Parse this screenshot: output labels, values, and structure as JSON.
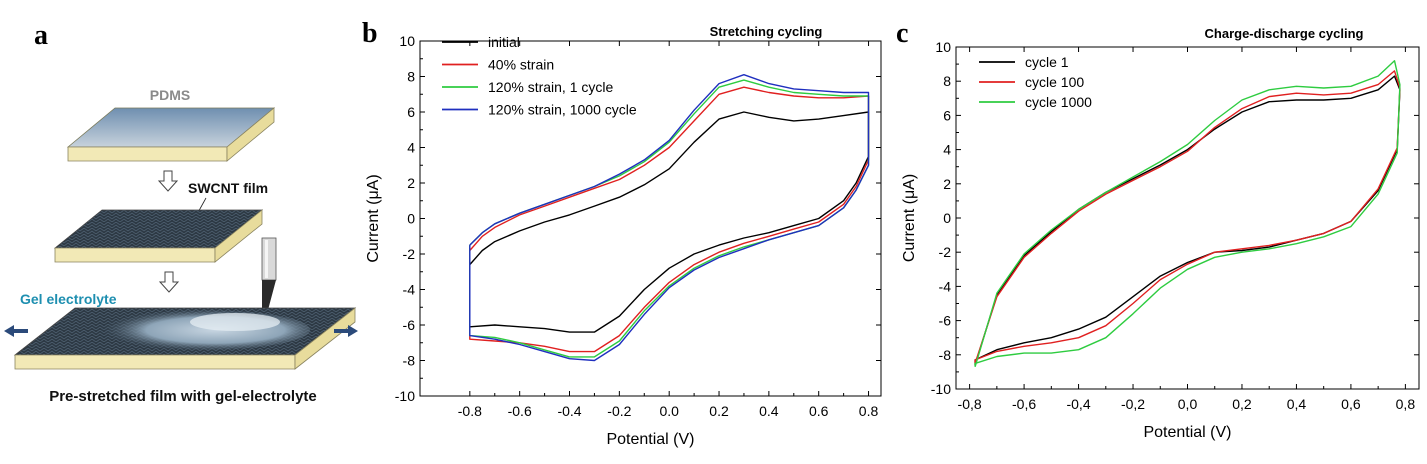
{
  "panels": {
    "a": {
      "letter": "a",
      "pdms_label": "PDMS",
      "swcnt_label": "SWCNT film",
      "gel_label": "Gel electrolyte",
      "caption": "Pre-stretched film with gel-electrolyte"
    },
    "b": {
      "letter": "b"
    },
    "c": {
      "letter": "c"
    }
  },
  "chart_data": [
    {
      "type": "line",
      "title": "Stretching cycling",
      "xlabel": "Potential (V)",
      "ylabel": "Current (μA)",
      "xlim": [
        -1.0,
        0.85
      ],
      "ylim": [
        -10,
        10
      ],
      "xticks": [
        -0.8,
        -0.6,
        -0.4,
        -0.2,
        0.0,
        0.2,
        0.4,
        0.6,
        0.8
      ],
      "xtick_labels": [
        "-0.8",
        "-0.6",
        "-0.4",
        "-0.2",
        "0.0",
        "0.2",
        "0.4",
        "0.6",
        "0.8"
      ],
      "yticks": [
        -10,
        -8,
        -6,
        -4,
        -2,
        0,
        2,
        4,
        6,
        8,
        10
      ],
      "legend_position": "top-left",
      "series": [
        {
          "name": "initial",
          "color": "#000000",
          "x": [
            -0.8,
            -0.75,
            -0.7,
            -0.6,
            -0.5,
            -0.4,
            -0.3,
            -0.2,
            -0.1,
            0.0,
            0.1,
            0.2,
            0.3,
            0.4,
            0.5,
            0.6,
            0.7,
            0.8,
            0.8,
            0.75,
            0.7,
            0.6,
            0.5,
            0.4,
            0.3,
            0.2,
            0.1,
            0.0,
            -0.1,
            -0.2,
            -0.3,
            -0.4,
            -0.5,
            -0.6,
            -0.7,
            -0.8,
            -0.8
          ],
          "y": [
            -2.6,
            -1.8,
            -1.3,
            -0.7,
            -0.2,
            0.2,
            0.7,
            1.2,
            1.9,
            2.8,
            4.3,
            5.6,
            6.0,
            5.7,
            5.5,
            5.6,
            5.8,
            6.0,
            3.5,
            2.0,
            1.0,
            0.0,
            -0.4,
            -0.8,
            -1.1,
            -1.5,
            -2.0,
            -2.8,
            -4.0,
            -5.5,
            -6.4,
            -6.4,
            -6.2,
            -6.1,
            -6.0,
            -6.1,
            -2.6
          ]
        },
        {
          "name": "40% strain",
          "color": "#e02020",
          "x": [
            -0.8,
            -0.75,
            -0.7,
            -0.6,
            -0.5,
            -0.4,
            -0.3,
            -0.2,
            -0.1,
            0.0,
            0.1,
            0.2,
            0.3,
            0.4,
            0.5,
            0.6,
            0.7,
            0.8,
            0.8,
            0.75,
            0.7,
            0.6,
            0.5,
            0.4,
            0.3,
            0.2,
            0.1,
            0.0,
            -0.1,
            -0.2,
            -0.3,
            -0.4,
            -0.5,
            -0.6,
            -0.7,
            -0.8,
            -0.8
          ],
          "y": [
            -1.8,
            -1.0,
            -0.5,
            0.2,
            0.7,
            1.2,
            1.7,
            2.2,
            3.0,
            4.0,
            5.5,
            7.0,
            7.4,
            7.1,
            6.9,
            6.8,
            6.8,
            6.9,
            3.3,
            1.8,
            0.8,
            -0.2,
            -0.6,
            -1.0,
            -1.4,
            -1.9,
            -2.6,
            -3.6,
            -5.0,
            -6.6,
            -7.5,
            -7.5,
            -7.2,
            -7.0,
            -6.9,
            -6.8,
            -1.8
          ]
        },
        {
          "name": "120% strain, 1 cycle",
          "color": "#2ecc40",
          "x": [
            -0.8,
            -0.75,
            -0.7,
            -0.6,
            -0.5,
            -0.4,
            -0.3,
            -0.2,
            -0.1,
            0.0,
            0.1,
            0.2,
            0.3,
            0.4,
            0.5,
            0.6,
            0.7,
            0.8,
            0.8,
            0.75,
            0.7,
            0.6,
            0.5,
            0.4,
            0.3,
            0.2,
            0.1,
            0.0,
            -0.1,
            -0.2,
            -0.3,
            -0.4,
            -0.5,
            -0.6,
            -0.7,
            -0.8,
            -0.8
          ],
          "y": [
            -1.5,
            -0.8,
            -0.3,
            0.3,
            0.8,
            1.3,
            1.8,
            2.4,
            3.2,
            4.3,
            5.9,
            7.4,
            7.8,
            7.4,
            7.1,
            7.0,
            6.9,
            6.9,
            3.0,
            1.6,
            0.6,
            -0.4,
            -0.8,
            -1.2,
            -1.6,
            -2.1,
            -2.8,
            -3.8,
            -5.2,
            -6.9,
            -7.8,
            -7.8,
            -7.4,
            -7.0,
            -6.7,
            -6.6,
            -1.5
          ]
        },
        {
          "name": "120% strain, 1000 cycle",
          "color": "#1f2fbf",
          "x": [
            -0.8,
            -0.75,
            -0.7,
            -0.6,
            -0.5,
            -0.4,
            -0.3,
            -0.2,
            -0.1,
            0.0,
            0.1,
            0.2,
            0.3,
            0.4,
            0.5,
            0.6,
            0.7,
            0.8,
            0.8,
            0.75,
            0.7,
            0.6,
            0.5,
            0.4,
            0.3,
            0.2,
            0.1,
            0.0,
            -0.1,
            -0.2,
            -0.3,
            -0.4,
            -0.5,
            -0.6,
            -0.7,
            -0.8,
            -0.8
          ],
          "y": [
            -1.5,
            -0.8,
            -0.3,
            0.3,
            0.8,
            1.3,
            1.8,
            2.5,
            3.3,
            4.4,
            6.1,
            7.6,
            8.1,
            7.6,
            7.3,
            7.2,
            7.1,
            7.1,
            3.0,
            1.6,
            0.6,
            -0.4,
            -0.8,
            -1.2,
            -1.7,
            -2.2,
            -2.9,
            -3.9,
            -5.4,
            -7.1,
            -8.0,
            -7.9,
            -7.5,
            -7.1,
            -6.8,
            -6.6,
            -1.5
          ]
        }
      ]
    },
    {
      "type": "line",
      "title": "Charge-discharge cycling",
      "xlabel": "Potential (V)",
      "ylabel": "Current (μA)",
      "xlim": [
        -0.85,
        0.85
      ],
      "ylim": [
        -10,
        10
      ],
      "xticks": [
        -0.8,
        -0.6,
        -0.4,
        -0.2,
        0.0,
        0.2,
        0.4,
        0.6,
        0.8
      ],
      "xtick_labels": [
        "-0,8",
        "-0,6",
        "-0,4",
        "-0,2",
        "0,0",
        "0,2",
        "0,4",
        "0,6",
        "0,8"
      ],
      "yticks": [
        -10,
        -8,
        -6,
        -4,
        -2,
        0,
        2,
        4,
        6,
        8,
        10
      ],
      "legend_position": "top-left",
      "series": [
        {
          "name": "cycle 1",
          "color": "#000000",
          "x": [
            -0.78,
            -0.7,
            -0.6,
            -0.5,
            -0.4,
            -0.3,
            -0.2,
            -0.1,
            0.0,
            0.1,
            0.2,
            0.3,
            0.4,
            0.5,
            0.6,
            0.7,
            0.76,
            0.78,
            0.77,
            0.7,
            0.6,
            0.5,
            0.4,
            0.3,
            0.2,
            0.1,
            0.0,
            -0.1,
            -0.2,
            -0.3,
            -0.4,
            -0.5,
            -0.6,
            -0.7,
            -0.78,
            -0.78
          ],
          "y": [
            -8.6,
            -4.5,
            -2.2,
            -0.8,
            0.5,
            1.5,
            2.3,
            3.1,
            4.0,
            5.2,
            6.2,
            6.8,
            6.9,
            6.9,
            7.0,
            7.5,
            8.3,
            7.5,
            4.0,
            1.6,
            -0.2,
            -0.9,
            -1.3,
            -1.7,
            -1.9,
            -2.0,
            -2.6,
            -3.4,
            -4.6,
            -5.8,
            -6.5,
            -7.0,
            -7.3,
            -7.7,
            -8.3,
            -8.6
          ]
        },
        {
          "name": "cycle 100",
          "color": "#e02020",
          "x": [
            -0.78,
            -0.7,
            -0.6,
            -0.5,
            -0.4,
            -0.3,
            -0.2,
            -0.1,
            0.0,
            0.1,
            0.2,
            0.3,
            0.4,
            0.5,
            0.6,
            0.7,
            0.76,
            0.78,
            0.77,
            0.7,
            0.6,
            0.5,
            0.4,
            0.3,
            0.2,
            0.1,
            0.0,
            -0.1,
            -0.2,
            -0.3,
            -0.4,
            -0.5,
            -0.6,
            -0.7,
            -0.78,
            -0.78
          ],
          "y": [
            -8.5,
            -4.6,
            -2.3,
            -0.9,
            0.4,
            1.4,
            2.2,
            3.0,
            3.9,
            5.3,
            6.4,
            7.1,
            7.3,
            7.2,
            7.3,
            7.8,
            8.6,
            7.6,
            4.1,
            1.7,
            -0.2,
            -0.9,
            -1.3,
            -1.6,
            -1.8,
            -2.0,
            -2.7,
            -3.6,
            -5.0,
            -6.3,
            -7.0,
            -7.3,
            -7.5,
            -7.8,
            -8.3,
            -8.5
          ]
        },
        {
          "name": "cycle 1000",
          "color": "#2ecc40",
          "x": [
            -0.78,
            -0.7,
            -0.6,
            -0.5,
            -0.4,
            -0.3,
            -0.2,
            -0.1,
            0.0,
            0.1,
            0.2,
            0.3,
            0.4,
            0.5,
            0.6,
            0.7,
            0.76,
            0.78,
            0.77,
            0.7,
            0.6,
            0.5,
            0.4,
            0.3,
            0.2,
            0.1,
            0.0,
            -0.1,
            -0.2,
            -0.3,
            -0.4,
            -0.5,
            -0.6,
            -0.7,
            -0.78,
            -0.78
          ],
          "y": [
            -8.7,
            -4.4,
            -2.1,
            -0.7,
            0.5,
            1.5,
            2.4,
            3.3,
            4.3,
            5.7,
            6.9,
            7.5,
            7.7,
            7.6,
            7.7,
            8.3,
            9.2,
            7.8,
            3.8,
            1.4,
            -0.5,
            -1.1,
            -1.5,
            -1.8,
            -2.0,
            -2.3,
            -3.0,
            -4.1,
            -5.6,
            -7.0,
            -7.7,
            -7.9,
            -7.9,
            -8.1,
            -8.5,
            -8.7
          ]
        }
      ]
    }
  ]
}
